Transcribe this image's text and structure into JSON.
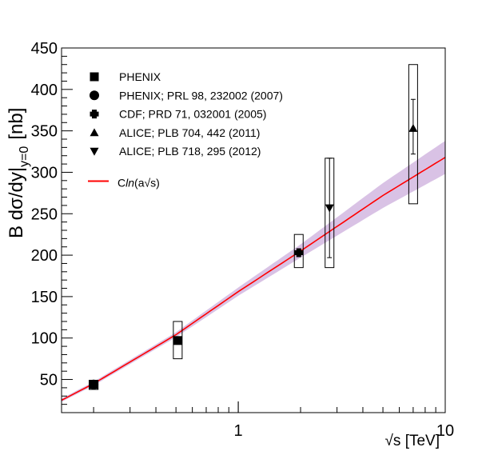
{
  "chart_data": {
    "type": "scatter",
    "title": "",
    "xlabel": "√s [TeV]",
    "ylabel_main": "B dσ/dy|",
    "ylabel_sub": "y=0",
    "ylabel_unit": "[nb]",
    "x_scale": "log",
    "xlim": [
      0.14,
      10
    ],
    "ylim": [
      10,
      450
    ],
    "x_tick_labels": [
      {
        "value": 1,
        "label": "1"
      },
      {
        "value": 10,
        "label": "10"
      }
    ],
    "y_tick_labels": [
      {
        "value": 50,
        "label": "50"
      },
      {
        "value": 100,
        "label": "100"
      },
      {
        "value": 150,
        "label": "150"
      },
      {
        "value": 200,
        "label": "200"
      },
      {
        "value": 250,
        "label": "250"
      },
      {
        "value": 300,
        "label": "300"
      },
      {
        "value": 350,
        "label": "350"
      },
      {
        "value": 400,
        "label": "400"
      },
      {
        "value": 450,
        "label": "450"
      }
    ],
    "grid": false,
    "legend_position": "top-left",
    "series": [
      {
        "name": "PHENIX",
        "marker": "square",
        "points": [
          {
            "x": 0.2,
            "y": 44,
            "sys_lo": 38,
            "sys_hi": 49
          },
          {
            "x": 0.51,
            "y": 97,
            "sys_lo": 75,
            "sys_hi": 120
          }
        ]
      },
      {
        "name": "PHENIX; PRL 98, 232002 (2007)",
        "marker": "circle",
        "points": [
          {
            "x": 0.2,
            "y": 44,
            "sys_lo": 38,
            "sys_hi": 49
          }
        ]
      },
      {
        "name": "CDF; PRD 71, 032001 (2005)",
        "marker": "cross",
        "points": [
          {
            "x": 1.96,
            "y": 203,
            "sys_lo": 185,
            "sys_hi": 225
          }
        ]
      },
      {
        "name": "ALICE; PLB 704, 442 (2011)",
        "marker": "triangle-up",
        "points": [
          {
            "x": 7,
            "y": 353,
            "stat_lo": 322,
            "stat_hi": 388,
            "sys_lo": 262,
            "sys_hi": 430
          }
        ]
      },
      {
        "name": "ALICE; PLB 718, 295 (2012)",
        "marker": "triangle-down",
        "points": [
          {
            "x": 2.76,
            "y": 257,
            "stat_lo": 197,
            "stat_hi": 317,
            "sys_lo": 185,
            "sys_hi": 317
          }
        ]
      }
    ],
    "fit": {
      "name_prefix": "C",
      "name_italic": "ln",
      "name_suffix": "(a√s)",
      "points": [
        [
          0.14,
          25
        ],
        [
          0.2,
          45
        ],
        [
          0.5,
          104
        ],
        [
          1,
          156
        ],
        [
          2,
          205
        ],
        [
          5,
          272
        ],
        [
          10,
          318
        ]
      ],
      "band_halfwidth": [
        [
          0.14,
          2
        ],
        [
          0.5,
          3
        ],
        [
          1,
          5
        ],
        [
          2,
          8
        ],
        [
          5,
          15
        ],
        [
          10,
          20
        ]
      ],
      "line_color": "#ff0000",
      "band_color": "#ba8fd0"
    }
  }
}
